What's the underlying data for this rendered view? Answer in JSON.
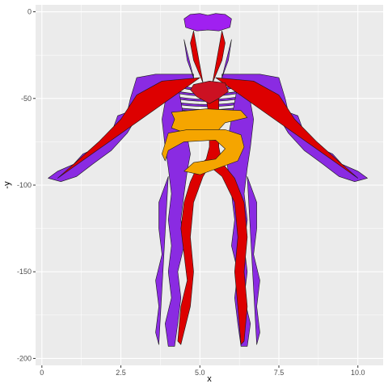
{
  "chart_data": {
    "type": "scatter",
    "title": "",
    "xlabel": "x",
    "ylabel": "-y",
    "xlim": [
      -2,
      108
    ],
    "ylim": [
      -204,
      4
    ],
    "x_ticks": [
      0,
      25,
      50,
      75,
      100
    ],
    "x_tick_labels": [
      "0",
      "2.5",
      "5.0",
      "7.5",
      "10.0"
    ],
    "y_ticks": [
      0,
      -50,
      -100,
      -150,
      -200
    ],
    "y_tick_labels": [
      "0",
      "-50",
      "-100",
      "-150",
      "-200"
    ],
    "grid": true,
    "legend": "none",
    "colors": {
      "panel": "#ebebeb",
      "grid": "#ffffff",
      "veins": "#8a2be2",
      "arteries": "#dd0000",
      "brain": "#a020f0",
      "heart": "#cc1122",
      "intestines": "#f5a500",
      "outline": "#1a1a1a"
    },
    "series": [
      {
        "group": "brain",
        "shape": "brain",
        "points": [
          [
            45,
            -4
          ],
          [
            47,
            -1.5
          ],
          [
            50,
            -1
          ],
          [
            52.5,
            -2
          ],
          [
            55,
            -1
          ],
          [
            58,
            -1.5
          ],
          [
            60,
            -4
          ],
          [
            59.5,
            -9
          ],
          [
            56,
            -11
          ],
          [
            52.5,
            -10.5
          ],
          [
            49,
            -11
          ],
          [
            45.5,
            -9
          ]
        ]
      },
      {
        "group": "heart",
        "shape": "heart",
        "points": [
          [
            48,
            -42
          ],
          [
            53,
            -40
          ],
          [
            58,
            -41
          ],
          [
            59,
            -46
          ],
          [
            56,
            -50
          ],
          [
            53,
            -53
          ],
          [
            49,
            -49
          ],
          [
            47,
            -45
          ]
        ]
      },
      {
        "group": "intestines",
        "shape": "stomach",
        "points": [
          [
            41,
            -58
          ],
          [
            52,
            -56
          ],
          [
            63,
            -57
          ],
          [
            65,
            -61
          ],
          [
            58,
            -64
          ],
          [
            55,
            -70
          ],
          [
            47,
            -71
          ],
          [
            41,
            -67
          ],
          [
            42,
            -62
          ]
        ]
      },
      {
        "group": "intestines",
        "shape": "colon",
        "points": [
          [
            40,
            -70
          ],
          [
            46,
            -68
          ],
          [
            58,
            -68
          ],
          [
            63,
            -71
          ],
          [
            64,
            -78
          ],
          [
            62,
            -86
          ],
          [
            56,
            -90
          ],
          [
            50,
            -94
          ],
          [
            45,
            -92
          ],
          [
            48,
            -87
          ],
          [
            55,
            -85
          ],
          [
            58,
            -79
          ],
          [
            55,
            -74
          ],
          [
            45,
            -75
          ],
          [
            40,
            -80
          ],
          [
            39,
            -86
          ],
          [
            38,
            -82
          ]
        ]
      },
      {
        "group": "arteries",
        "shape": "aorta",
        "points": [
          [
            50,
            -45
          ],
          [
            52,
            -50
          ],
          [
            53,
            -62
          ],
          [
            53,
            -78
          ],
          [
            52,
            -85
          ],
          [
            49,
            -90
          ],
          [
            47,
            -98
          ],
          [
            45,
            -110
          ],
          [
            44,
            -125
          ],
          [
            45,
            -140
          ],
          [
            46,
            -155
          ],
          [
            44,
            -170
          ],
          [
            43,
            -190
          ],
          [
            44,
            -192
          ],
          [
            47,
            -170
          ],
          [
            48,
            -150
          ],
          [
            47,
            -130
          ],
          [
            48,
            -110
          ],
          [
            51,
            -95
          ],
          [
            53,
            -89
          ],
          [
            57,
            -95
          ],
          [
            61,
            -110
          ],
          [
            62,
            -130
          ],
          [
            61,
            -150
          ],
          [
            62,
            -170
          ],
          [
            63,
            -192
          ],
          [
            64,
            -190
          ],
          [
            65,
            -170
          ],
          [
            64,
            -150
          ],
          [
            65,
            -130
          ],
          [
            64,
            -110
          ],
          [
            61,
            -96
          ],
          [
            57,
            -87
          ],
          [
            56,
            -78
          ],
          [
            56,
            -62
          ],
          [
            56,
            -50
          ],
          [
            54,
            -45
          ]
        ]
      },
      {
        "group": "arteries",
        "shape": "carotid-left",
        "points": [
          [
            51,
            -41
          ],
          [
            48,
            -28
          ],
          [
            47,
            -18
          ],
          [
            48,
            -11
          ]
        ]
      },
      {
        "group": "arteries",
        "shape": "carotid-right",
        "points": [
          [
            54,
            -41
          ],
          [
            57,
            -28
          ],
          [
            58,
            -18
          ],
          [
            57,
            -11
          ]
        ]
      },
      {
        "group": "arteries",
        "shape": "arm-left",
        "points": [
          [
            50,
            -38
          ],
          [
            38,
            -40
          ],
          [
            30,
            -48
          ],
          [
            25,
            -62
          ],
          [
            18,
            -75
          ],
          [
            10,
            -88
          ],
          [
            5,
            -96
          ]
        ]
      },
      {
        "group": "arteries",
        "shape": "arm-right",
        "points": [
          [
            55,
            -38
          ],
          [
            67,
            -40
          ],
          [
            75,
            -48
          ],
          [
            80,
            -62
          ],
          [
            87,
            -75
          ],
          [
            95,
            -88
          ],
          [
            100,
            -96
          ]
        ]
      },
      {
        "group": "veins",
        "shape": "arm-left",
        "points": [
          [
            48,
            -36
          ],
          [
            36,
            -36
          ],
          [
            30,
            -38
          ],
          [
            28,
            -50
          ],
          [
            27,
            -58
          ],
          [
            24,
            -60
          ],
          [
            22,
            -70
          ],
          [
            18,
            -78
          ],
          [
            13,
            -82
          ],
          [
            10,
            -88
          ],
          [
            5,
            -92
          ],
          [
            2,
            -96
          ],
          [
            6,
            -98
          ],
          [
            11,
            -95
          ],
          [
            16,
            -88
          ],
          [
            22,
            -80
          ],
          [
            27,
            -70
          ],
          [
            31,
            -58
          ],
          [
            33,
            -46
          ],
          [
            38,
            -41
          ],
          [
            48,
            -40
          ]
        ]
      },
      {
        "group": "veins",
        "shape": "arm-right",
        "points": [
          [
            57,
            -36
          ],
          [
            69,
            -36
          ],
          [
            75,
            -38
          ],
          [
            77,
            -50
          ],
          [
            78,
            -58
          ],
          [
            81,
            -60
          ],
          [
            83,
            -70
          ],
          [
            87,
            -78
          ],
          [
            92,
            -82
          ],
          [
            95,
            -88
          ],
          [
            100,
            -92
          ],
          [
            103,
            -96
          ],
          [
            99,
            -98
          ],
          [
            94,
            -95
          ],
          [
            89,
            -88
          ],
          [
            83,
            -80
          ],
          [
            78,
            -70
          ],
          [
            74,
            -58
          ],
          [
            72,
            -46
          ],
          [
            67,
            -41
          ],
          [
            57,
            -40
          ]
        ]
      },
      {
        "group": "veins",
        "shape": "torso-left",
        "points": [
          [
            43,
            -42
          ],
          [
            39,
            -52
          ],
          [
            38,
            -62
          ],
          [
            39,
            -78
          ],
          [
            40,
            -90
          ],
          [
            41,
            -105
          ],
          [
            40,
            -120
          ],
          [
            41,
            -135
          ],
          [
            40,
            -150
          ],
          [
            41,
            -165
          ],
          [
            39,
            -180
          ],
          [
            40,
            -193
          ],
          [
            42,
            -193
          ],
          [
            43,
            -180
          ],
          [
            44,
            -165
          ],
          [
            43,
            -150
          ],
          [
            45,
            -135
          ],
          [
            44,
            -120
          ],
          [
            45,
            -105
          ],
          [
            46,
            -92
          ],
          [
            47,
            -82
          ]
        ]
      },
      {
        "group": "veins",
        "shape": "torso-right",
        "points": [
          [
            62,
            -42
          ],
          [
            66,
            -52
          ],
          [
            67,
            -62
          ],
          [
            66,
            -78
          ],
          [
            65,
            -90
          ],
          [
            64,
            -105
          ],
          [
            65,
            -120
          ],
          [
            64,
            -135
          ],
          [
            65,
            -150
          ],
          [
            64,
            -165
          ],
          [
            66,
            -180
          ],
          [
            65,
            -193
          ],
          [
            63,
            -193
          ],
          [
            62,
            -180
          ],
          [
            61,
            -165
          ],
          [
            62,
            -150
          ],
          [
            60,
            -135
          ],
          [
            61,
            -120
          ],
          [
            60,
            -105
          ],
          [
            59,
            -92
          ],
          [
            58,
            -82
          ]
        ]
      },
      {
        "group": "veins",
        "shape": "leg-left-outer",
        "points": [
          [
            40,
            -95
          ],
          [
            37,
            -110
          ],
          [
            37,
            -125
          ],
          [
            38,
            -140
          ],
          [
            36,
            -155
          ],
          [
            37,
            -170
          ],
          [
            36,
            -185
          ],
          [
            37,
            -192
          ]
        ]
      },
      {
        "group": "veins",
        "shape": "leg-right-outer",
        "points": [
          [
            65,
            -95
          ],
          [
            68,
            -110
          ],
          [
            68,
            -125
          ],
          [
            67,
            -140
          ],
          [
            69,
            -155
          ],
          [
            68,
            -170
          ],
          [
            69,
            -185
          ],
          [
            68,
            -192
          ]
        ]
      },
      {
        "group": "veins",
        "shape": "neck-left",
        "points": [
          [
            48,
            -38
          ],
          [
            46,
            -28
          ],
          [
            45,
            -16
          ]
        ]
      },
      {
        "group": "veins",
        "shape": "neck-right",
        "points": [
          [
            57,
            -38
          ],
          [
            59,
            -28
          ],
          [
            60,
            -16
          ]
        ]
      }
    ],
    "ribs": {
      "group": "veins",
      "center_x": 52.5,
      "y": [
        -43,
        -46,
        -49,
        -52,
        -55,
        -58,
        -61
      ],
      "half_width": [
        9,
        11,
        12,
        13,
        13,
        12,
        10
      ]
    }
  }
}
